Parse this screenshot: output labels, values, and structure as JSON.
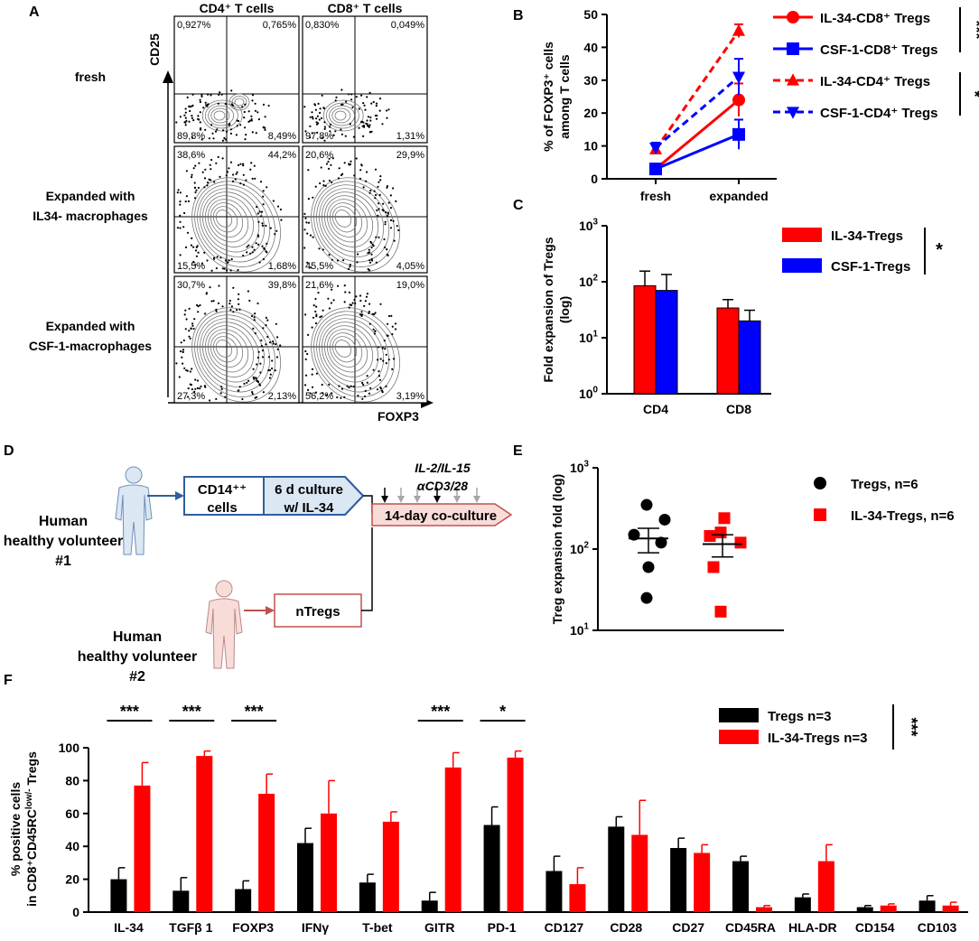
{
  "colors": {
    "red": "#ff0000",
    "blue": "#0000ff",
    "black": "#000000",
    "gray": "#a6a6a6",
    "lightblue": "#dbe7f3",
    "darkblue": "#2e5f9e",
    "lightred": "#f8dcd8",
    "darkred": "#c0504d"
  },
  "panelA": {
    "letter": "A",
    "col_headers": [
      "CD4⁺ T cells",
      "CD8⁺ T cells"
    ],
    "y_axis": "CD25",
    "x_axis": "FOXP3",
    "row_labels": [
      [
        "fresh"
      ],
      [
        "Expanded with",
        "IL34- macrophages"
      ],
      [
        "Expanded with",
        "CSF-1-macrophages"
      ]
    ],
    "quadrants": [
      [
        [
          "0,927%",
          "0,765%",
          "89,8%",
          "8,49%"
        ],
        [
          "0,830%",
          "0,049%",
          "97,8%",
          "1,31%"
        ]
      ],
      [
        [
          "38,6%",
          "44,2%",
          "15,5%",
          "1,68%"
        ],
        [
          "20,6%",
          "29,9%",
          "45,5%",
          "4,05%"
        ]
      ],
      [
        [
          "30,7%",
          "39,8%",
          "27,3%",
          "2,13%"
        ],
        [
          "21,6%",
          "19,0%",
          "56,2%",
          "3,19%"
        ]
      ]
    ]
  },
  "panelB": {
    "letter": "B",
    "chart_data": {
      "type": "line",
      "ylabel_lines": [
        "% of FOXP3⁺ cells",
        "among T cells"
      ],
      "categories": [
        "fresh",
        "expanded"
      ],
      "ylim": [
        0,
        50
      ],
      "yticks": [
        "0",
        "10",
        "20",
        "30",
        "40",
        "50"
      ],
      "series": [
        {
          "name": "IL-34-CD8⁺ Tregs",
          "color": "#ff0000",
          "dash": false,
          "marker": "circle",
          "values": [
            3,
            24
          ],
          "errors": [
            0.5,
            5
          ]
        },
        {
          "name": "CSF-1-CD8⁺ Tregs",
          "color": "#0000ff",
          "dash": false,
          "marker": "square",
          "values": [
            3,
            13.5
          ],
          "errors": [
            0.5,
            4.5
          ]
        },
        {
          "name": "IL-34-CD4⁺ Tregs",
          "color": "#ff0000",
          "dash": true,
          "marker": "triangle-up",
          "values": [
            9,
            45
          ],
          "errors": [
            1.5,
            2
          ]
        },
        {
          "name": "CSF-1-CD4⁺ Tregs",
          "color": "#0000ff",
          "dash": true,
          "marker": "triangle-down",
          "values": [
            9.5,
            31
          ],
          "errors": [
            1.5,
            5.5
          ]
        }
      ],
      "significance": [
        "***",
        "*"
      ]
    }
  },
  "panelC": {
    "letter": "C",
    "chart_data": {
      "type": "bar",
      "ylabel_lines": [
        "Fold expansion of Tregs",
        "(log)"
      ],
      "categories": [
        "CD4",
        "CD8"
      ],
      "yscale": "log",
      "ylim": [
        1,
        1000
      ],
      "yticks": [
        {
          "base": "10",
          "exp": "0"
        },
        {
          "base": "10",
          "exp": "1"
        },
        {
          "base": "10",
          "exp": "2"
        },
        {
          "base": "10",
          "exp": "3"
        }
      ],
      "series": [
        {
          "name": "IL-34-Tregs",
          "color": "#ff0000",
          "values": [
            85,
            34
          ],
          "errors": [
            70,
            14
          ]
        },
        {
          "name": "CSF-1-Tregs",
          "color": "#0000ff",
          "values": [
            70,
            20
          ],
          "errors": [
            65,
            11
          ]
        }
      ],
      "significance": "*"
    }
  },
  "panelD": {
    "letter": "D",
    "volunteer1": [
      "Human",
      "healthy volunteer",
      "#1"
    ],
    "volunteer2": [
      "Human",
      "healthy volunteer",
      "#2"
    ],
    "box1_lines": [
      "CD14⁺⁺",
      "cells"
    ],
    "box2_lines": [
      "6 d culture",
      "w/ IL-34"
    ],
    "cytokines": "IL-2/IL-15",
    "stim": "αCD3/28",
    "coculture": "14-day co-culture",
    "ntregs": "nTregs"
  },
  "panelE": {
    "letter": "E",
    "chart_data": {
      "type": "scatter",
      "ylabel": "Treg expansion fold (log)",
      "yscale": "log",
      "ylim": [
        10,
        1000
      ],
      "yticks": [
        {
          "base": "10",
          "exp": "1"
        },
        {
          "base": "10",
          "exp": "2"
        },
        {
          "base": "10",
          "exp": "3"
        }
      ],
      "series": [
        {
          "name": "Tregs, n=6",
          "color": "#000000",
          "marker": "circle",
          "values": [
            350,
            230,
            150,
            120,
            60,
            25
          ],
          "mean": 135,
          "sem": 45
        },
        {
          "name": "IL-34-Tregs, n=6",
          "color": "#ff0000",
          "marker": "square",
          "values": [
            240,
            160,
            145,
            120,
            60,
            17
          ],
          "mean": 115,
          "sem": 35
        }
      ]
    }
  },
  "panelF": {
    "letter": "F",
    "chart_data": {
      "type": "bar",
      "ylabel_lines": [
        "% positive cells",
        "in CD8⁺CD45RC^low/- Tregs"
      ],
      "ylim": [
        0,
        100
      ],
      "yticks": [
        "0",
        "20",
        "40",
        "60",
        "80",
        "100"
      ],
      "categories": [
        "IL-34",
        "TGFβ 1",
        "FOXP3",
        "IFNγ",
        "T-bet",
        "GITR",
        "PD-1",
        "CD127",
        "CD28",
        "CD27",
        "CD45RA",
        "HLA-DR",
        "CD154",
        "CD103"
      ],
      "series": [
        {
          "name": "Tregs n=3",
          "color": "#000000",
          "values": [
            20,
            13,
            14,
            42,
            18,
            7,
            53,
            25,
            52,
            39,
            31,
            9,
            3,
            7
          ],
          "errors": [
            7,
            8,
            5,
            9,
            5,
            5,
            11,
            9,
            6,
            6,
            3,
            2,
            1,
            3
          ]
        },
        {
          "name": "IL-34-Tregs n=3",
          "color": "#ff0000",
          "values": [
            77,
            95,
            72,
            60,
            55,
            88,
            94,
            17,
            47,
            36,
            3,
            31,
            4,
            4
          ],
          "errors": [
            14,
            3,
            12,
            20,
            6,
            9,
            4,
            10,
            21,
            5,
            1,
            10,
            1,
            2
          ]
        }
      ],
      "pairwise_significance": [
        {
          "index": 0,
          "label": "***"
        },
        {
          "index": 1,
          "label": "***"
        },
        {
          "index": 2,
          "label": "***"
        },
        {
          "index": 5,
          "label": "***"
        },
        {
          "index": 6,
          "label": "*"
        }
      ],
      "significance": "***"
    }
  }
}
